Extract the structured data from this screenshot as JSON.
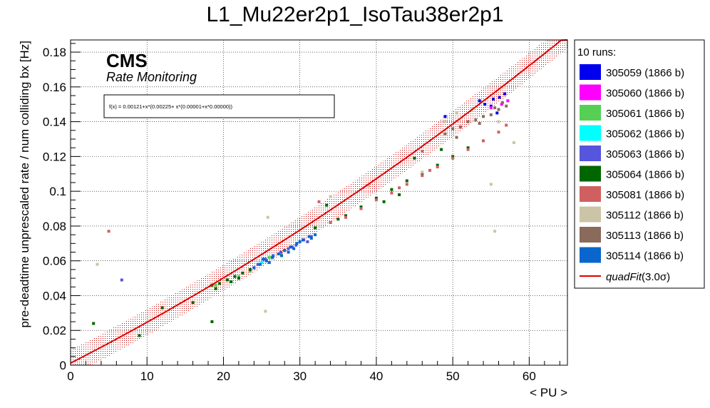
{
  "chart_data": {
    "type": "scatter",
    "title": "L1_Mu22er2p1_IsoTau38er2p1",
    "xlabel": "< PU >",
    "ylabel": "pre-deadtime unprescaled rate / num colliding bx [Hz]",
    "xlim": [
      0,
      65
    ],
    "ylim": [
      0,
      0.187
    ],
    "xticks": [
      0,
      10,
      20,
      30,
      40,
      50,
      60
    ],
    "yticks": [
      0,
      0.02,
      0.04,
      0.06,
      0.08,
      0.1,
      0.12,
      0.14,
      0.16,
      0.18
    ],
    "xtick_labels": [
      "0",
      "10",
      "20",
      "30",
      "40",
      "50",
      "60"
    ],
    "ytick_labels": [
      "0",
      "0.02",
      "0.04",
      "0.06",
      "0.08",
      "0.1",
      "0.12",
      "0.14",
      "0.16",
      "0.18"
    ],
    "grid": true,
    "cms_label": "CMS",
    "sub_label": "Rate Monitoring",
    "fit_formula": "f(x) = 0.00121+x*(0.00225+ x*(0.00001+x*0.00000))",
    "fit": {
      "c0": 0.00121,
      "c1": 0.00225,
      "c2": 1e-05,
      "band_sigma": 3.0,
      "band_halfwidth": 0.0075,
      "color": "#dd0000"
    },
    "legend": {
      "header": "10 runs:",
      "fit_label_italic": "quadFit",
      "fit_label_rest": "(3.0σ)",
      "entries": [
        {
          "label": "305059 (1866 b)",
          "color": "#0000ee"
        },
        {
          "label": "305060 (1866 b)",
          "color": "#ff00ff"
        },
        {
          "label": "305061 (1866 b)",
          "color": "#55d055"
        },
        {
          "label": "305062 (1866 b)",
          "color": "#00ffff"
        },
        {
          "label": "305063 (1866 b)",
          "color": "#5555dd"
        },
        {
          "label": "305064 (1866 b)",
          "color": "#006600"
        },
        {
          "label": "305081 (1866 b)",
          "color": "#d06060"
        },
        {
          "label": "305112 (1866 b)",
          "color": "#ccc4a6"
        },
        {
          "label": "305113 (1866 b)",
          "color": "#8a6a5a"
        },
        {
          "label": "305114 (1866 b)",
          "color": "#0a66cc"
        }
      ]
    },
    "series": [
      {
        "name": "305059 (1866 b)",
        "color": "#0000ee",
        "x": [
          53.5,
          54.2,
          55.0,
          55.8,
          56.1,
          56.8,
          49.0,
          55.3
        ],
        "y": [
          0.152,
          0.15,
          0.149,
          0.145,
          0.154,
          0.156,
          0.143,
          0.153
        ]
      },
      {
        "name": "305060 (1866 b)",
        "color": "#ff00ff",
        "x": [
          55.0,
          56.4,
          57.2
        ],
        "y": [
          0.148,
          0.15,
          0.152
        ]
      },
      {
        "name": "305061 (1866 b)",
        "color": "#55d055",
        "x": [
          19.0,
          20.5,
          22.0,
          23.5,
          26.0,
          27.5
        ],
        "y": [
          0.046,
          0.049,
          0.051,
          0.054,
          0.062,
          0.064
        ]
      },
      {
        "name": "305062 (1866 b)",
        "color": "#00ffff",
        "x": [
          25.0,
          26.5,
          28.0
        ],
        "y": [
          0.059,
          0.063,
          0.066
        ]
      },
      {
        "name": "305063 (1866 b)",
        "color": "#5555dd",
        "x": [
          24.5,
          25.5,
          26.5,
          27.5,
          28.5,
          29.5,
          30.5,
          31.5,
          24.0,
          29.0,
          31.0,
          6.7
        ],
        "y": [
          0.058,
          0.061,
          0.063,
          0.065,
          0.067,
          0.069,
          0.072,
          0.074,
          0.056,
          0.068,
          0.071,
          0.049
        ]
      },
      {
        "name": "305064 (1866 b)",
        "color": "#006600",
        "x": [
          18.5,
          19.5,
          20.5,
          21.5,
          22.5,
          23.5,
          32,
          34,
          36,
          38,
          40,
          42,
          44,
          46,
          48,
          50,
          52,
          3,
          9,
          12,
          16,
          18.5,
          33.5,
          45,
          48.5,
          19.0,
          21.0,
          22.0,
          35.0,
          41.0,
          43.0
        ],
        "y": [
          0.046,
          0.047,
          0.049,
          0.051,
          0.053,
          0.055,
          0.079,
          0.082,
          0.086,
          0.091,
          0.096,
          0.101,
          0.106,
          0.11,
          0.115,
          0.12,
          0.125,
          0.024,
          0.017,
          0.033,
          0.036,
          0.025,
          0.092,
          0.119,
          0.124,
          0.044,
          0.048,
          0.05,
          0.084,
          0.094,
          0.098
        ]
      },
      {
        "name": "305081 (1866 b)",
        "color": "#d06060",
        "x": [
          5.0,
          34,
          36,
          38,
          40,
          42,
          44,
          46,
          48,
          50,
          52,
          54,
          56,
          57,
          43,
          47,
          32.5,
          46
        ],
        "y": [
          0.077,
          0.082,
          0.085,
          0.09,
          0.095,
          0.099,
          0.104,
          0.109,
          0.114,
          0.119,
          0.124,
          0.129,
          0.134,
          0.138,
          0.102,
          0.112,
          0.094,
          0.123
        ]
      },
      {
        "name": "305112 (1866 b)",
        "color": "#ccc4a6",
        "x": [
          3.5,
          25.5,
          25.8,
          34,
          39,
          46,
          49,
          55,
          55.5,
          58,
          56,
          50.5,
          52.5
        ],
        "y": [
          0.058,
          0.031,
          0.085,
          0.097,
          0.103,
          0.111,
          0.14,
          0.104,
          0.077,
          0.128,
          0.14,
          0.145,
          0.147
        ]
      },
      {
        "name": "305113 (1866 b)",
        "color": "#8a6a5a",
        "x": [
          49,
          50,
          51,
          52,
          53,
          54,
          55,
          56,
          57,
          50.5,
          53.5,
          55.5,
          56.5
        ],
        "y": [
          0.133,
          0.136,
          0.137,
          0.14,
          0.141,
          0.143,
          0.144,
          0.147,
          0.149,
          0.131,
          0.139,
          0.148,
          0.151
        ]
      },
      {
        "name": "305114 (1866 b)",
        "color": "#0a66cc",
        "x": [
          24.0,
          24.8,
          25.6,
          26.4,
          27.2,
          28.0,
          28.8,
          29.6,
          30.4,
          31.2,
          32.0,
          26.0,
          28.5,
          30.0,
          31.5,
          25.2,
          27.6,
          29.2
        ],
        "y": [
          0.056,
          0.058,
          0.06,
          0.062,
          0.064,
          0.066,
          0.068,
          0.07,
          0.072,
          0.074,
          0.075,
          0.059,
          0.065,
          0.071,
          0.073,
          0.061,
          0.063,
          0.067
        ]
      }
    ]
  }
}
